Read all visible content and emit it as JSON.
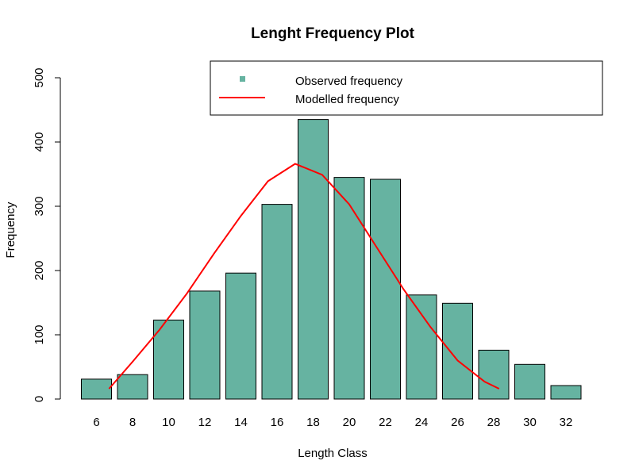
{
  "chart_data": {
    "type": "bar",
    "title": "Lenght Frequency Plot",
    "xlabel": "Length Class",
    "ylabel": "Frequency",
    "ylim": [
      0,
      500
    ],
    "y_ticks": [
      "0",
      "100",
      "200",
      "300",
      "400",
      "500"
    ],
    "categories": [
      "6",
      "8",
      "10",
      "12",
      "14",
      "16",
      "18",
      "20",
      "22",
      "24",
      "26",
      "28",
      "30",
      "32"
    ],
    "series": [
      {
        "name": "Observed frequency",
        "type": "bar",
        "color": "#66b3a1",
        "values": [
          31,
          38,
          123,
          168,
          196,
          303,
          435,
          345,
          342,
          162,
          149,
          76,
          54,
          21
        ]
      },
      {
        "name": "Modelled frequency",
        "type": "line",
        "color": "#ff0000",
        "x": [
          6.7,
          8,
          9.5,
          11,
          12.5,
          14,
          15.5,
          17,
          18.5,
          20,
          21.5,
          23,
          24.5,
          26,
          27.5,
          28.3
        ],
        "values": [
          16,
          58,
          108,
          164,
          226,
          285,
          339,
          366,
          349,
          303,
          237,
          171,
          112,
          60,
          27,
          16
        ]
      }
    ],
    "legend": {
      "position": "top-right"
    },
    "grid": false
  }
}
